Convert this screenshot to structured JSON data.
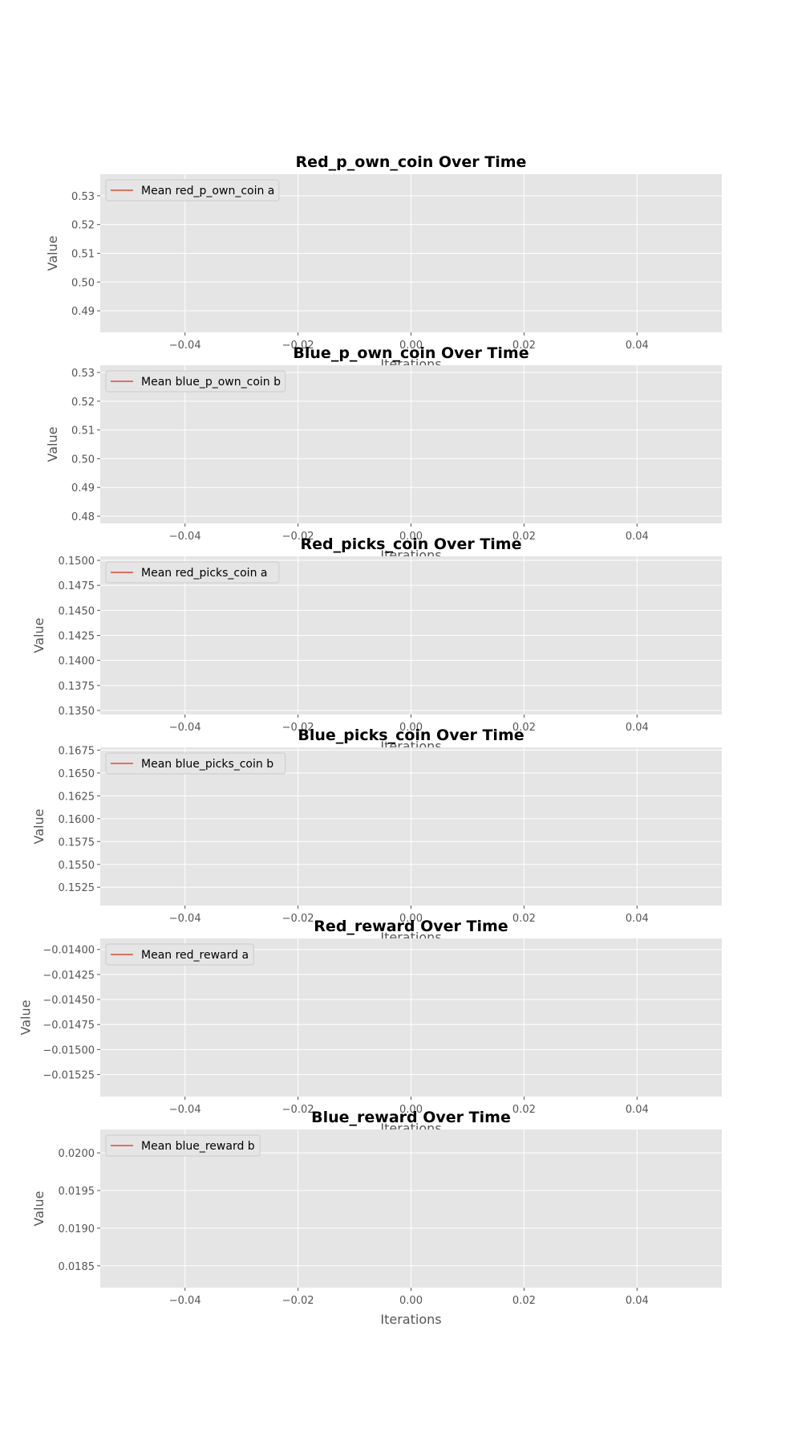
{
  "chart_data": [
    {
      "type": "line",
      "title": "Red_p_own_coin Over Time",
      "xlabel": "Iterations",
      "ylabel": "Value",
      "xlim": [
        -0.055,
        0.055
      ],
      "ylim": [
        0.4825,
        0.5375
      ],
      "x_ticks": [
        -0.04,
        -0.02,
        0.0,
        0.02,
        0.04
      ],
      "x_tick_labels": [
        "−0.04",
        "−0.02",
        "0.00",
        "0.02",
        "0.04"
      ],
      "y_ticks": [
        0.49,
        0.5,
        0.51,
        0.52,
        0.53
      ],
      "y_tick_labels": [
        "0.49",
        "0.50",
        "0.51",
        "0.52",
        "0.53"
      ],
      "grid": true,
      "legend_position": "upper-left",
      "series": [
        {
          "name": "Mean red_p_own_coin a",
          "x": [],
          "values": [],
          "color": "#E24A33"
        }
      ]
    },
    {
      "type": "line",
      "title": "Blue_p_own_coin Over Time",
      "xlabel": "Iterations",
      "ylabel": "Value",
      "xlim": [
        -0.055,
        0.055
      ],
      "ylim": [
        0.4775,
        0.5325
      ],
      "x_ticks": [
        -0.04,
        -0.02,
        0.0,
        0.02,
        0.04
      ],
      "x_tick_labels": [
        "−0.04",
        "−0.02",
        "0.00",
        "0.02",
        "0.04"
      ],
      "y_ticks": [
        0.48,
        0.49,
        0.5,
        0.51,
        0.52,
        0.53
      ],
      "y_tick_labels": [
        "0.48",
        "0.49",
        "0.50",
        "0.51",
        "0.52",
        "0.53"
      ],
      "grid": true,
      "legend_position": "upper-left",
      "series": [
        {
          "name": "Mean blue_p_own_coin b",
          "x": [],
          "values": [],
          "color": "#E24A33"
        }
      ]
    },
    {
      "type": "line",
      "title": "Red_picks_coin Over Time",
      "xlabel": "Iterations",
      "ylabel": "Value",
      "xlim": [
        -0.055,
        0.055
      ],
      "ylim": [
        0.1346,
        0.1504
      ],
      "x_ticks": [
        -0.04,
        -0.02,
        0.0,
        0.02,
        0.04
      ],
      "x_tick_labels": [
        "−0.04",
        "−0.02",
        "0.00",
        "0.02",
        "0.04"
      ],
      "y_ticks": [
        0.135,
        0.1375,
        0.14,
        0.1425,
        0.145,
        0.1475,
        0.15
      ],
      "y_tick_labels": [
        "0.1350",
        "0.1375",
        "0.1400",
        "0.1425",
        "0.1450",
        "0.1475",
        "0.1500"
      ],
      "grid": true,
      "legend_position": "upper-left",
      "series": [
        {
          "name": "Mean red_picks_coin a",
          "x": [],
          "values": [],
          "color": "#E24A33"
        }
      ]
    },
    {
      "type": "line",
      "title": "Blue_picks_coin Over Time",
      "xlabel": "Iterations",
      "ylabel": "Value",
      "xlim": [
        -0.055,
        0.055
      ],
      "ylim": [
        0.1505,
        0.1678
      ],
      "x_ticks": [
        -0.04,
        -0.02,
        0.0,
        0.02,
        0.04
      ],
      "x_tick_labels": [
        "−0.04",
        "−0.02",
        "0.00",
        "0.02",
        "0.04"
      ],
      "y_ticks": [
        0.1525,
        0.155,
        0.1575,
        0.16,
        0.1625,
        0.165,
        0.1675
      ],
      "y_tick_labels": [
        "0.1525",
        "0.1550",
        "0.1575",
        "0.1600",
        "0.1625",
        "0.1650",
        "0.1675"
      ],
      "grid": true,
      "legend_position": "upper-left",
      "series": [
        {
          "name": "Mean blue_picks_coin b",
          "x": [],
          "values": [],
          "color": "#E24A33"
        }
      ]
    },
    {
      "type": "line",
      "title": "Red_reward Over Time",
      "xlabel": "Iterations",
      "ylabel": "Value",
      "xlim": [
        -0.055,
        0.055
      ],
      "ylim": [
        -0.01547,
        -0.01389
      ],
      "x_ticks": [
        -0.04,
        -0.02,
        0.0,
        0.02,
        0.04
      ],
      "x_tick_labels": [
        "−0.04",
        "−0.02",
        "0.00",
        "0.02",
        "0.04"
      ],
      "y_ticks": [
        -0.01525,
        -0.015,
        -0.01475,
        -0.0145,
        -0.01425,
        -0.014
      ],
      "y_tick_labels": [
        "−0.01525",
        "−0.01500",
        "−0.01475",
        "−0.01450",
        "−0.01425",
        "−0.01400"
      ],
      "grid": true,
      "legend_position": "upper-left",
      "series": [
        {
          "name": "Mean red_reward a",
          "x": [],
          "values": [],
          "color": "#E24A33"
        }
      ]
    },
    {
      "type": "line",
      "title": "Blue_reward Over Time",
      "xlabel": "Iterations",
      "ylabel": "Value",
      "xlim": [
        -0.055,
        0.055
      ],
      "ylim": [
        0.01821,
        0.02031
      ],
      "x_ticks": [
        -0.04,
        -0.02,
        0.0,
        0.02,
        0.04
      ],
      "x_tick_labels": [
        "−0.04",
        "−0.02",
        "0.00",
        "0.02",
        "0.04"
      ],
      "y_ticks": [
        0.0185,
        0.019,
        0.0195,
        0.02
      ],
      "y_tick_labels": [
        "0.0185",
        "0.0190",
        "0.0195",
        "0.0200"
      ],
      "grid": true,
      "legend_position": "upper-left",
      "series": [
        {
          "name": "Mean blue_reward b",
          "x": [],
          "values": [],
          "color": "#E24A33"
        }
      ]
    }
  ],
  "style": {
    "axes_background": "#E5E5E5",
    "grid_color": "#FFFFFF",
    "tick_color": "#555555",
    "label_color": "#555555",
    "title_color": "#000000",
    "legend_background": "#E5E5E5",
    "legend_border": "#CCCCCC"
  }
}
